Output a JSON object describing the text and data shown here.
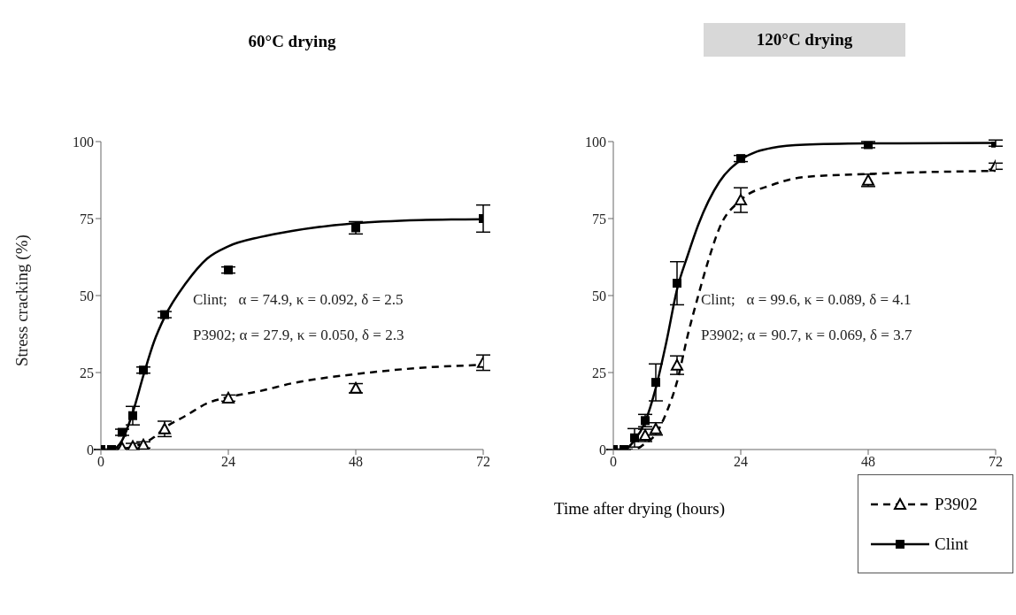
{
  "chart_data": [
    {
      "type": "scatter",
      "title": "60°C drying",
      "xlabel": "Time after drying (hours)",
      "ylabel": "Stress cracking (%)",
      "xlim": [
        0,
        72
      ],
      "xticks": [
        0,
        24,
        48,
        72
      ],
      "ylim": [
        0,
        100
      ],
      "yticks": [
        0,
        25,
        50,
        75,
        100
      ],
      "grid": false,
      "legend": "bottom right",
      "annotations": [
        "Clint;   α = 74.9, κ = 0.092, δ = 2.5",
        "P3902; α = 27.9, κ = 0.050, δ = 2.3"
      ],
      "series": [
        {
          "name": "P3902",
          "marker": "triangle",
          "color": "#000000",
          "x": [
            4,
            6,
            8,
            12,
            24,
            48,
            72
          ],
          "values": [
            0.5,
            1,
            1.5,
            6.7,
            16.7,
            19.9,
            28.2
          ],
          "errors": [
            null,
            1,
            1,
            2.5,
            1,
            1.5,
            2.5
          ]
        },
        {
          "name": "Clint",
          "marker": "square",
          "color": "#000000",
          "x": [
            0,
            2,
            4,
            6,
            8,
            12,
            24,
            48,
            72
          ],
          "values": [
            0,
            0,
            5.6,
            11,
            25.8,
            43.8,
            58.3,
            72,
            75
          ],
          "errors": [
            null,
            null,
            1,
            3,
            1,
            1,
            1,
            2,
            4.4
          ]
        },
        {
          "type": "line",
          "line_style": "dashed",
          "marker": "none",
          "color": "#000000",
          "x": [
            0,
            2,
            4,
            6,
            8,
            10,
            12,
            16,
            20,
            24,
            30,
            36,
            48,
            60,
            72
          ],
          "values": [
            0,
            0,
            0,
            1,
            2,
            4,
            7,
            11,
            15,
            17,
            19,
            21.5,
            24.5,
            26.5,
            27.5
          ]
        },
        {
          "type": "line",
          "line_style": "solid",
          "marker": "none",
          "color": "#000000",
          "x": [
            0,
            2,
            4,
            6,
            8,
            10,
            12,
            16,
            20,
            24,
            30,
            36,
            48,
            60,
            72
          ],
          "values": [
            0,
            0,
            3,
            12,
            24,
            35,
            43,
            54,
            62,
            66,
            69,
            71,
            73.5,
            74.5,
            74.8
          ]
        }
      ]
    },
    {
      "type": "scatter",
      "title": "120°C drying",
      "xlim": [
        0,
        72
      ],
      "xticks": [
        0,
        24,
        48,
        72
      ],
      "ylim": [
        0,
        100
      ],
      "yticks": [
        0,
        25,
        50,
        75,
        100
      ],
      "grid": false,
      "annotations": [
        "Clint;   α = 99.6, κ = 0.089, δ = 4.1",
        "P3902; α = 90.7, κ = 0.069, δ = 3.7"
      ],
      "series": [
        {
          "marker": "triangle",
          "color": "#000000",
          "x": [
            6,
            8,
            12,
            24,
            48,
            72
          ],
          "values": [
            4.6,
            6.7,
            27.4,
            81,
            87.4,
            92
          ],
          "errors": [
            2,
            2,
            3,
            4,
            2,
            1
          ]
        },
        {
          "marker": "square",
          "color": "#000000",
          "x": [
            0,
            2,
            4,
            6,
            8,
            12,
            24,
            48,
            72
          ],
          "values": [
            0,
            0,
            3.8,
            9.4,
            21.8,
            54,
            94.5,
            99,
            99.5
          ],
          "errors": [
            null,
            null,
            3,
            2,
            6,
            7,
            1,
            1,
            1
          ]
        },
        {
          "type": "line",
          "line_style": "dashed",
          "marker": "none",
          "color": "#000000",
          "x": [
            0,
            2,
            4,
            6,
            8,
            10,
            12,
            14,
            16,
            18,
            20,
            24,
            30,
            36,
            48,
            72
          ],
          "values": [
            0,
            0,
            0,
            2,
            5,
            12,
            22,
            37,
            50,
            62,
            72,
            81,
            86,
            88.5,
            89.5,
            90.5
          ]
        },
        {
          "type": "line",
          "line_style": "solid",
          "marker": "none",
          "color": "#000000",
          "x": [
            0,
            2,
            4,
            6,
            8,
            10,
            12,
            14,
            16,
            20,
            24,
            30,
            36,
            48,
            72
          ],
          "values": [
            0,
            0,
            3,
            9,
            20,
            35,
            52,
            63,
            73,
            87,
            94,
            98,
            99,
            99.4,
            99.6
          ]
        }
      ]
    }
  ]
}
